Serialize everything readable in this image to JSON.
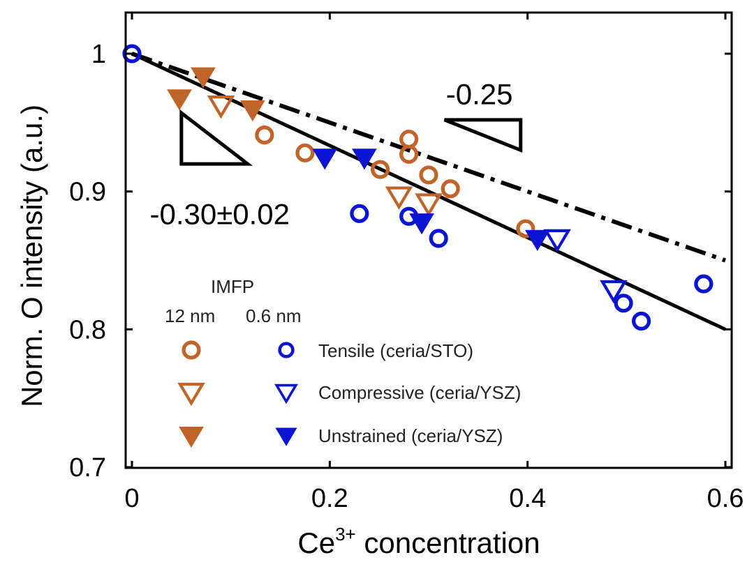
{
  "chart_data": {
    "type": "scatter",
    "xlabel_base": "Ce",
    "xlabel_sup": "3+",
    "xlabel_rest": " concentration",
    "ylabel": "Norm. O intensity (a.u.)",
    "xlim": [
      0,
      0.6
    ],
    "ylim": [
      0.7,
      1.0
    ],
    "x_ticks": [
      {
        "value": 0,
        "label": "0"
      },
      {
        "value": 0.2,
        "label": "0.2"
      },
      {
        "value": 0.4,
        "label": "0.4"
      },
      {
        "value": 0.6,
        "label": "0.6"
      }
    ],
    "y_ticks": [
      {
        "value": 0.7,
        "label": "0.7"
      },
      {
        "value": 0.8,
        "label": "0.8"
      },
      {
        "value": 0.9,
        "label": "0.9"
      },
      {
        "value": 1.0,
        "label": "1"
      }
    ],
    "grid": false,
    "colors": {
      "imfp_12nm": "#c0642a",
      "imfp_06nm": "#0a14d2"
    },
    "series": [
      {
        "name": "Tensile (ceria/STO)",
        "imfp": "12 nm",
        "marker": "circle-open",
        "color": "#c0642a",
        "points": [
          [
            0.134,
            0.941
          ],
          [
            0.175,
            0.928
          ],
          [
            0.251,
            0.916
          ],
          [
            0.28,
            0.938
          ],
          [
            0.28,
            0.927
          ],
          [
            0.3,
            0.912
          ],
          [
            0.322,
            0.902
          ],
          [
            0.398,
            0.873
          ]
        ]
      },
      {
        "name": "Compressive (ceria/YSZ)",
        "imfp": "12 nm",
        "marker": "triangle-open",
        "color": "#c0642a",
        "points": [
          [
            0.09,
            0.963
          ],
          [
            0.27,
            0.897
          ],
          [
            0.3,
            0.892
          ]
        ]
      },
      {
        "name": "Unstrained (ceria/YSZ)",
        "imfp": "12 nm",
        "marker": "triangle-filled",
        "color": "#c0642a",
        "points": [
          [
            0.048,
            0.968
          ],
          [
            0.072,
            0.984
          ],
          [
            0.122,
            0.96
          ]
        ]
      },
      {
        "name": "Tensile (ceria/STO)",
        "imfp": "0.6 nm",
        "marker": "circle-open",
        "color": "#0a14d2",
        "points": [
          [
            0.0,
            1.0
          ],
          [
            0.23,
            0.884
          ],
          [
            0.28,
            0.882
          ],
          [
            0.31,
            0.866
          ],
          [
            0.497,
            0.819
          ],
          [
            0.515,
            0.806
          ],
          [
            0.578,
            0.833
          ]
        ]
      },
      {
        "name": "Compressive (ceria/YSZ)",
        "imfp": "0.6 nm",
        "marker": "triangle-open",
        "color": "#0a14d2",
        "points": [
          [
            0.43,
            0.866
          ],
          [
            0.487,
            0.829
          ]
        ]
      },
      {
        "name": "Unstrained (ceria/YSZ)",
        "imfp": "0.6 nm",
        "marker": "triangle-filled",
        "color": "#0a14d2",
        "points": [
          [
            0.195,
            0.925
          ],
          [
            0.235,
            0.925
          ],
          [
            0.293,
            0.878
          ],
          [
            0.41,
            0.866
          ]
        ]
      }
    ],
    "fit_lines": [
      {
        "style": "solid",
        "x": [
          0,
          0.6
        ],
        "y": [
          1.0,
          0.8
        ]
      },
      {
        "style": "dash-dot",
        "x": [
          0,
          0.6
        ],
        "y": [
          1.0,
          0.85
        ]
      }
    ],
    "slope_triangles": [
      {
        "points": [
          [
            0.05,
            0.957
          ],
          [
            0.05,
            0.92
          ],
          [
            0.117,
            0.92
          ]
        ]
      },
      {
        "points": [
          [
            0.316,
            0.952
          ],
          [
            0.393,
            0.93
          ],
          [
            0.393,
            0.952
          ]
        ]
      }
    ],
    "annotations": [
      {
        "text": "-0.25",
        "x": 0.3175,
        "y": 0.971
      },
      {
        "text": "-0.30±0.02",
        "x": 0.018,
        "y": 0.884
      }
    ],
    "legend": {
      "placement": "lower-left",
      "title": "IMFP",
      "column_headers": [
        "12 nm",
        "0.6 nm"
      ],
      "entries": [
        "Tensile (ceria/STO)",
        "Compressive (ceria/YSZ)",
        "Unstrained (ceria/YSZ)"
      ]
    }
  }
}
